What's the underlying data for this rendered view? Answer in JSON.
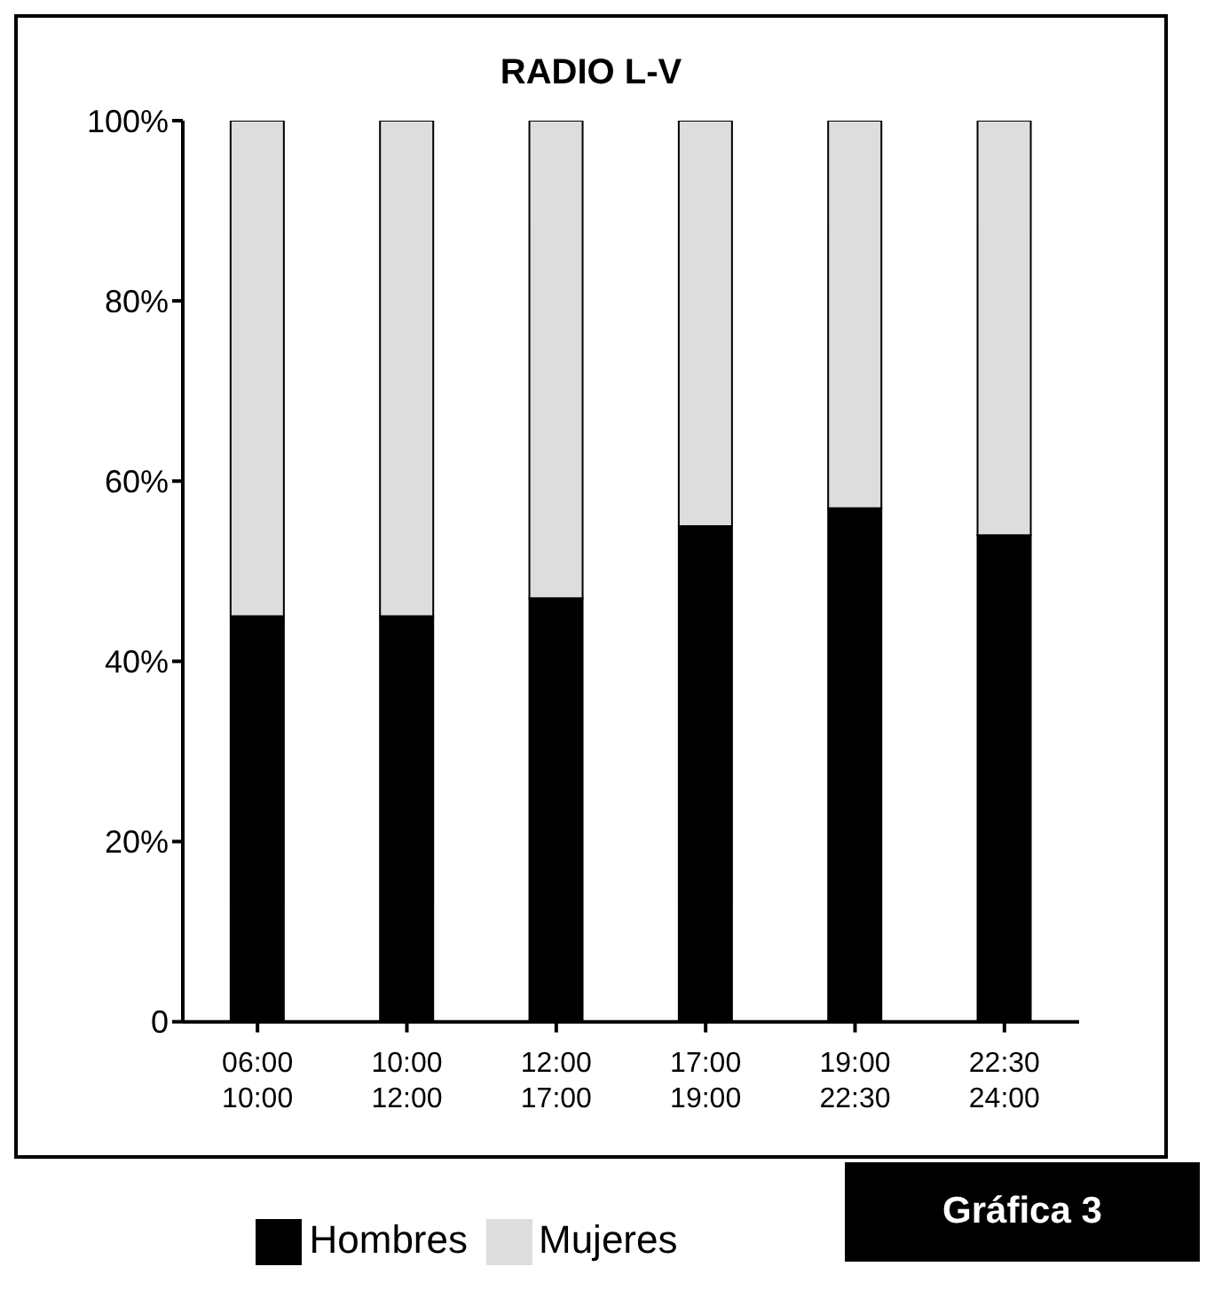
{
  "chart_data": {
    "type": "bar",
    "title": "RADIO L-V",
    "stacked": true,
    "categories": [
      "06:00\n10:00",
      "10:00\n12:00",
      "12:00\n17:00",
      "17:00\n19:00",
      "19:00\n22:30",
      "22:30\n24:00"
    ],
    "series": [
      {
        "name": "Hombres",
        "color": "#000000",
        "values": [
          45,
          45,
          47,
          55,
          57,
          54
        ]
      },
      {
        "name": "Mujeres",
        "color": "#dddddd",
        "values": [
          55,
          55,
          53,
          45,
          43,
          46
        ]
      }
    ],
    "ylim": [
      0,
      100
    ],
    "yticks": [
      {
        "value": 0,
        "label": "0"
      },
      {
        "value": 20,
        "label": "20%"
      },
      {
        "value": 40,
        "label": "40%"
      },
      {
        "value": 60,
        "label": "60%"
      },
      {
        "value": 80,
        "label": "80%"
      },
      {
        "value": 100,
        "label": "100%"
      }
    ],
    "grid": false,
    "legend": "bottom",
    "annotations": [
      "Gráfica 3"
    ]
  }
}
